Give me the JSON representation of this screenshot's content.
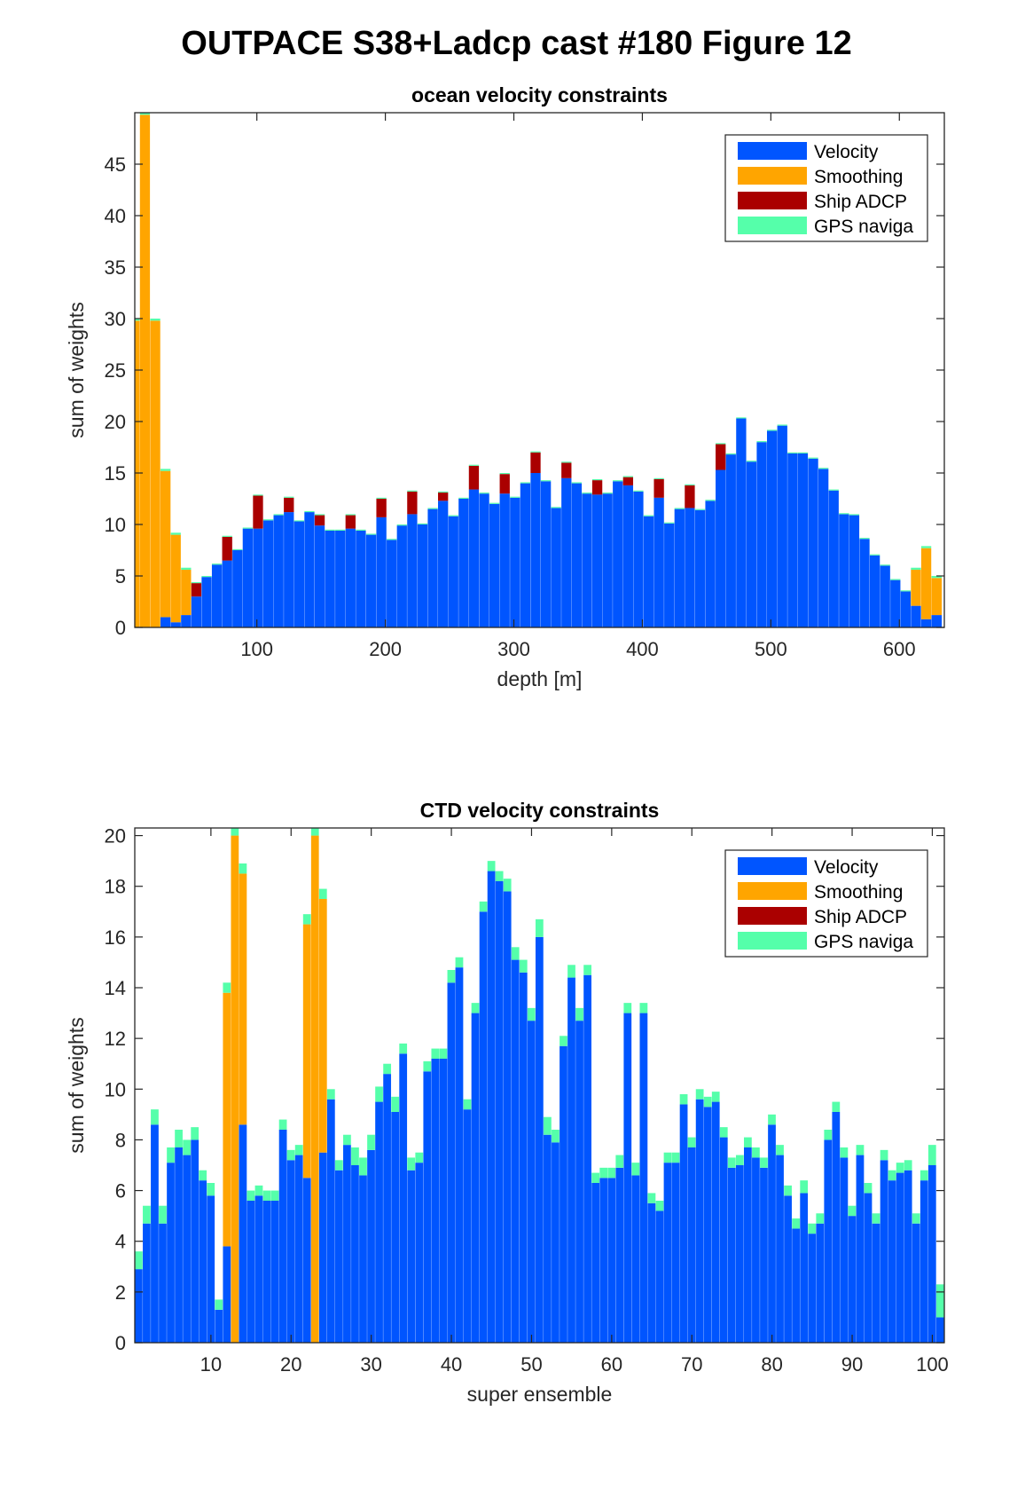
{
  "figure": {
    "title": "OUTPACE S38+Ladcp cast #180  Figure 12"
  },
  "colors": {
    "velocity": "#0055FF",
    "smoothing": "#FFA500",
    "ship_adcp": "#AA0000",
    "gps": "#55FFAA"
  },
  "chart_data": [
    {
      "type": "bar",
      "stacked": true,
      "title": "ocean velocity constraints",
      "xlabel": "depth [m]",
      "ylabel": "sum of weights",
      "xlim": [
        5,
        635
      ],
      "ylim": [
        0,
        50
      ],
      "xticks": [
        100,
        200,
        300,
        400,
        500,
        600
      ],
      "yticks": [
        0,
        5,
        10,
        15,
        20,
        25,
        30,
        35,
        40,
        45
      ],
      "bar_width": 8,
      "legend": {
        "position": "top-right",
        "entries": [
          "Velocity",
          "Smoothing",
          "Ship ADCP",
          "GPS naviga"
        ]
      },
      "x": [
        5,
        13,
        21,
        29,
        37,
        45,
        53,
        61,
        69,
        77,
        85,
        93,
        101,
        109,
        117,
        125,
        133,
        141,
        149,
        157,
        165,
        173,
        181,
        189,
        197,
        205,
        213,
        221,
        229,
        237,
        245,
        253,
        261,
        269,
        277,
        285,
        293,
        301,
        309,
        317,
        325,
        333,
        341,
        349,
        357,
        365,
        373,
        381,
        389,
        397,
        405,
        413,
        421,
        429,
        437,
        445,
        453,
        461,
        469,
        477,
        485,
        493,
        501,
        509,
        517,
        525,
        533,
        541,
        549,
        557,
        565,
        573,
        581,
        589,
        597,
        605,
        613,
        621,
        629
      ],
      "series": [
        {
          "name": "Velocity",
          "values": [
            0,
            0,
            0,
            1.0,
            0.5,
            1.2,
            3.0,
            4.9,
            6.1,
            6.5,
            7.5,
            9.6,
            9.6,
            10.4,
            10.9,
            11.2,
            10.3,
            11.2,
            9.9,
            9.4,
            9.4,
            9.6,
            9.4,
            9.0,
            10.7,
            8.5,
            9.9,
            11.0,
            10.0,
            11.5,
            12.3,
            10.8,
            12.5,
            13.4,
            13.0,
            12.0,
            13.0,
            12.6,
            14.0,
            15.0,
            14.2,
            11.6,
            14.5,
            14.0,
            13.0,
            12.9,
            13.0,
            14.2,
            13.8,
            13.2,
            10.8,
            12.6,
            10.1,
            11.5,
            11.6,
            11.4,
            12.3,
            15.3,
            16.8,
            20.3,
            16.1,
            18.0,
            19.1,
            19.6,
            16.9,
            16.9,
            16.4,
            15.4,
            13.3,
            11.0,
            10.9,
            8.6,
            7.0,
            6.0,
            4.6,
            3.5,
            2.1,
            0.8,
            1.2
          ]
        },
        {
          "name": "Smoothing",
          "values": [
            29.8,
            49.8,
            29.8,
            14.2,
            8.5,
            4.4,
            0,
            0,
            0,
            0,
            0,
            0,
            0,
            0,
            0,
            0,
            0,
            0,
            0,
            0,
            0,
            0,
            0,
            0,
            0,
            0,
            0,
            0,
            0,
            0,
            0,
            0,
            0,
            0,
            0,
            0,
            0,
            0,
            0,
            0,
            0,
            0,
            0,
            0,
            0,
            0,
            0,
            0,
            0,
            0,
            0,
            0,
            0,
            0,
            0,
            0,
            0,
            0,
            0,
            0,
            0,
            0,
            0,
            0,
            0,
            0,
            0,
            0,
            0,
            0,
            0,
            0,
            0,
            0,
            0,
            0,
            3.5,
            6.9,
            3.6
          ]
        },
        {
          "name": "Ship ADCP",
          "values": [
            0,
            0,
            0,
            0,
            0,
            0,
            1.3,
            0,
            0,
            2.3,
            0,
            0,
            3.2,
            0,
            0,
            1.4,
            0,
            0,
            1.0,
            0,
            0,
            1.3,
            0,
            0,
            1.8,
            0,
            0,
            2.2,
            0,
            0,
            0.8,
            0,
            0,
            2.3,
            0,
            0,
            1.9,
            0,
            0,
            2.0,
            0,
            0,
            1.5,
            0,
            0,
            1.4,
            0,
            0,
            0.8,
            0,
            0,
            1.8,
            0,
            0,
            2.2,
            0,
            0,
            2.5,
            0,
            0,
            0,
            0,
            0,
            0,
            0,
            0,
            0,
            0,
            0,
            0,
            0,
            0,
            0,
            0,
            0,
            0,
            0,
            0,
            0
          ]
        },
        {
          "name": "GPS naviga",
          "values": [
            0.2,
            0.2,
            0.2,
            0.2,
            0.2,
            0.2,
            0.1,
            0.1,
            0.1,
            0.1,
            0.1,
            0.1,
            0.1,
            0.1,
            0.1,
            0.1,
            0.1,
            0.1,
            0.1,
            0.1,
            0.1,
            0.1,
            0.1,
            0.1,
            0.1,
            0.1,
            0.1,
            0.1,
            0.1,
            0.1,
            0.1,
            0.1,
            0.1,
            0.1,
            0.1,
            0.1,
            0.1,
            0.1,
            0.1,
            0.1,
            0.1,
            0.1,
            0.1,
            0.1,
            0.1,
            0.1,
            0.1,
            0.1,
            0.1,
            0.1,
            0.1,
            0.1,
            0.1,
            0.1,
            0.1,
            0.1,
            0.1,
            0.1,
            0.1,
            0.1,
            0.1,
            0.1,
            0.1,
            0.1,
            0.1,
            0.1,
            0.1,
            0.1,
            0.1,
            0.1,
            0.1,
            0.1,
            0.1,
            0.1,
            0.1,
            0.1,
            0.2,
            0.2,
            0.2
          ]
        }
      ]
    },
    {
      "type": "bar",
      "stacked": true,
      "title": "CTD velocity constraints",
      "xlabel": "super ensemble",
      "ylabel": "sum of weights",
      "xlim": [
        0.5,
        101.5
      ],
      "ylim": [
        0,
        20.3
      ],
      "xticks": [
        10,
        20,
        30,
        40,
        50,
        60,
        70,
        80,
        90,
        100
      ],
      "yticks": [
        0,
        2,
        4,
        6,
        8,
        10,
        12,
        14,
        16,
        18,
        20
      ],
      "bar_width": 1,
      "legend": {
        "position": "top-right",
        "entries": [
          "Velocity",
          "Smoothing",
          "Ship ADCP",
          "GPS naviga"
        ]
      },
      "x": [
        1,
        2,
        3,
        4,
        5,
        6,
        7,
        8,
        9,
        10,
        11,
        12,
        13,
        14,
        15,
        16,
        17,
        18,
        19,
        20,
        21,
        22,
        23,
        24,
        25,
        26,
        27,
        28,
        29,
        30,
        31,
        32,
        33,
        34,
        35,
        36,
        37,
        38,
        39,
        40,
        41,
        42,
        43,
        44,
        45,
        46,
        47,
        48,
        49,
        50,
        51,
        52,
        53,
        54,
        55,
        56,
        57,
        58,
        59,
        60,
        61,
        62,
        63,
        64,
        65,
        66,
        67,
        68,
        69,
        70,
        71,
        72,
        73,
        74,
        75,
        76,
        77,
        78,
        79,
        80,
        81,
        82,
        83,
        84,
        85,
        86,
        87,
        88,
        89,
        90,
        91,
        92,
        93,
        94,
        95,
        96,
        97,
        98,
        99,
        100,
        101
      ],
      "series": [
        {
          "name": "Velocity",
          "values": [
            2.9,
            4.7,
            8.6,
            4.7,
            7.1,
            7.7,
            7.4,
            8.0,
            6.4,
            5.8,
            1.3,
            3.8,
            0,
            8.6,
            5.6,
            5.8,
            5.6,
            5.6,
            8.4,
            7.2,
            7.4,
            6.5,
            0,
            7.5,
            9.6,
            6.8,
            7.8,
            7.0,
            6.6,
            7.6,
            9.5,
            10.6,
            9.1,
            11.4,
            6.8,
            7.1,
            10.7,
            11.2,
            11.2,
            14.2,
            14.8,
            9.2,
            13.0,
            17.0,
            18.6,
            18.2,
            17.8,
            15.1,
            14.6,
            12.7,
            16.0,
            8.2,
            7.9,
            11.7,
            14.4,
            12.7,
            14.5,
            6.3,
            6.5,
            6.5,
            6.9,
            13.0,
            6.6,
            13.0,
            5.5,
            5.2,
            7.1,
            7.1,
            9.4,
            7.7,
            9.6,
            9.3,
            9.5,
            8.1,
            6.9,
            7.0,
            7.7,
            7.3,
            6.9,
            8.6,
            7.4,
            5.8,
            4.5,
            5.9,
            4.3,
            4.7,
            8.0,
            9.1,
            7.3,
            5.0,
            7.4,
            5.9,
            4.7,
            7.2,
            6.4,
            6.7,
            6.8,
            4.7,
            6.4,
            7.0,
            1.0
          ]
        },
        {
          "name": "Smoothing",
          "values": [
            0,
            0,
            0,
            0,
            0,
            0,
            0,
            0,
            0,
            0,
            0,
            10.0,
            20.0,
            9.9,
            0,
            0,
            0,
            0,
            0,
            0,
            0,
            10.0,
            20.0,
            10.0,
            0,
            0,
            0,
            0,
            0,
            0,
            0,
            0,
            0,
            0,
            0,
            0,
            0,
            0,
            0,
            0,
            0,
            0,
            0,
            0,
            0,
            0,
            0,
            0,
            0,
            0,
            0,
            0,
            0,
            0,
            0,
            0,
            0,
            0,
            0,
            0,
            0,
            0,
            0,
            0,
            0,
            0,
            0,
            0,
            0,
            0,
            0,
            0,
            0,
            0,
            0,
            0,
            0,
            0,
            0,
            0,
            0,
            0,
            0,
            0,
            0,
            0,
            0,
            0,
            0,
            0,
            0,
            0,
            0,
            0,
            0,
            0,
            0,
            0,
            0,
            0,
            0
          ]
        },
        {
          "name": "Ship ADCP",
          "values": [
            0,
            0,
            0,
            0,
            0,
            0,
            0,
            0,
            0,
            0,
            0,
            0,
            0,
            0,
            0,
            0,
            0,
            0,
            0,
            0,
            0,
            0,
            0,
            0,
            0,
            0,
            0,
            0,
            0,
            0,
            0,
            0,
            0,
            0,
            0,
            0,
            0,
            0,
            0,
            0,
            0,
            0,
            0,
            0,
            0,
            0,
            0,
            0,
            0,
            0,
            0,
            0,
            0,
            0,
            0,
            0,
            0,
            0,
            0,
            0,
            0,
            0,
            0,
            0,
            0,
            0,
            0,
            0,
            0,
            0,
            0,
            0,
            0,
            0,
            0,
            0,
            0,
            0,
            0,
            0,
            0,
            0,
            0,
            0,
            0,
            0,
            0,
            0,
            0,
            0,
            0,
            0,
            0,
            0,
            0,
            0,
            0,
            0,
            0,
            0,
            0
          ]
        },
        {
          "name": "GPS naviga",
          "values": [
            0.7,
            0.7,
            0.6,
            0.7,
            0.6,
            0.7,
            0.6,
            0.5,
            0.4,
            0.5,
            0.4,
            0.4,
            0.4,
            0.4,
            0.4,
            0.4,
            0.4,
            0.4,
            0.4,
            0.4,
            0.4,
            0.4,
            0.4,
            0.4,
            0.4,
            0.4,
            0.4,
            0.7,
            0.7,
            0.6,
            0.6,
            0.4,
            0.6,
            0.4,
            0.5,
            0.4,
            0.4,
            0.4,
            0.4,
            0.5,
            0.4,
            0.4,
            0.4,
            0.4,
            0.4,
            0.4,
            0.5,
            0.5,
            0.5,
            0.5,
            0.7,
            0.7,
            0.5,
            0.4,
            0.5,
            0.5,
            0.4,
            0.4,
            0.4,
            0.4,
            0.5,
            0.4,
            0.5,
            0.4,
            0.4,
            0.4,
            0.4,
            0.4,
            0.4,
            0.4,
            0.4,
            0.4,
            0.4,
            0.4,
            0.4,
            0.4,
            0.4,
            0.4,
            0.4,
            0.4,
            0.4,
            0.4,
            0.4,
            0.5,
            0.4,
            0.4,
            0.4,
            0.4,
            0.4,
            0.4,
            0.4,
            0.4,
            0.4,
            0.4,
            0.4,
            0.4,
            0.4,
            0.4,
            0.4,
            0.8,
            1.3
          ]
        }
      ]
    }
  ]
}
